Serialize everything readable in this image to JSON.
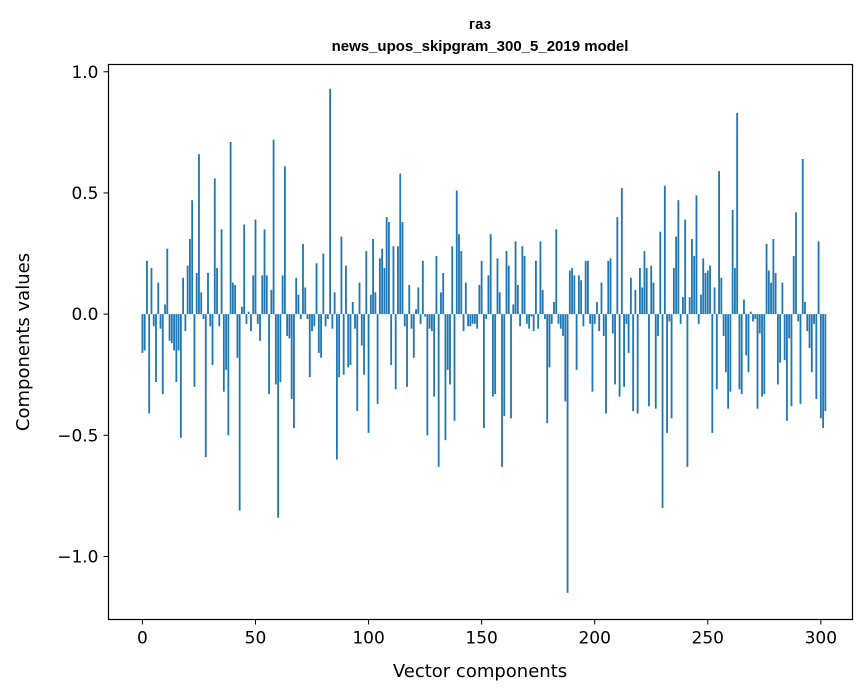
{
  "chart_data": {
    "type": "bar",
    "title": "газ",
    "subtitle": "news_upos_skipgram_300_5_2019 model",
    "xlabel": "Vector components",
    "ylabel": "Components values",
    "xlim": [
      -15,
      314
    ],
    "ylim": [
      -1.26,
      1.03
    ],
    "xticks": [
      0,
      50,
      100,
      150,
      200,
      250,
      300
    ],
    "xtick_labels": [
      "0",
      "50",
      "100",
      "150",
      "200",
      "250",
      "300"
    ],
    "yticks": [
      1.0,
      0.5,
      0.0,
      -0.5,
      -1.0
    ],
    "ytick_labels": [
      "1.0",
      "0.5",
      "0.0",
      "−0.5",
      "−1.0"
    ],
    "bar_color": "#1f77b4",
    "values": [
      -0.16,
      -0.15,
      0.22,
      -0.41,
      0.19,
      -0.05,
      -0.28,
      0.13,
      -0.06,
      -0.33,
      0.04,
      0.27,
      -0.11,
      -0.12,
      -0.15,
      -0.28,
      -0.15,
      -0.51,
      0.15,
      -0.07,
      0.2,
      0.31,
      0.47,
      -0.3,
      0.17,
      0.66,
      0.09,
      -0.02,
      -0.59,
      0.17,
      -0.05,
      -0.21,
      0.56,
      0.19,
      -0.05,
      0.35,
      -0.32,
      -0.23,
      -0.5,
      0.71,
      0.13,
      0.12,
      -0.18,
      -0.81,
      0.03,
      0.37,
      -0.04,
      0.01,
      -0.07,
      0.16,
      0.39,
      -0.04,
      -0.11,
      0.16,
      0.35,
      0.16,
      -0.33,
      0.1,
      0.72,
      -0.29,
      -0.84,
      -0.28,
      0.16,
      0.61,
      -0.09,
      -0.1,
      -0.35,
      -0.47,
      0.15,
      0.08,
      -0.02,
      0.29,
      0.11,
      -0.02,
      -0.26,
      -0.07,
      -0.05,
      0.21,
      -0.16,
      -0.18,
      0.25,
      -0.05,
      -0.02,
      0.93,
      -0.06,
      0.09,
      -0.6,
      -0.26,
      0.32,
      -0.25,
      0.2,
      -0.22,
      -0.21,
      0.05,
      -0.06,
      -0.4,
      0.13,
      -0.13,
      -0.25,
      0.26,
      -0.49,
      0.08,
      0.31,
      0.09,
      -0.37,
      0.23,
      0.27,
      0.19,
      0.4,
      0.38,
      -0.21,
      0.28,
      -0.31,
      0.28,
      0.58,
      0.38,
      -0.05,
      -0.3,
      0.12,
      -0.06,
      -0.18,
      0.02,
      0.11,
      -0.04,
      0.22,
      -0.01,
      -0.5,
      -0.06,
      -0.07,
      -0.34,
      0.24,
      -0.63,
      0.09,
      0.17,
      -0.52,
      -0.23,
      -0.29,
      0.28,
      -0.44,
      0.51,
      0.33,
      0.26,
      -0.07,
      0.13,
      -0.05,
      -0.05,
      -0.04,
      -0.04,
      -0.06,
      0.12,
      0.22,
      -0.47,
      -0.02,
      0.16,
      0.33,
      -0.34,
      -0.33,
      0.23,
      0.09,
      -0.63,
      -0.42,
      0.26,
      0.2,
      -0.43,
      0.04,
      0.3,
      0.12,
      -0.05,
      0.28,
      0.24,
      -0.04,
      -0.06,
      -0.01,
      -0.07,
      0.22,
      -0.06,
      0.3,
      0.1,
      -0.02,
      -0.45,
      -0.22,
      -0.04,
      0.05,
      0.35,
      -0.04,
      -0.06,
      -0.09,
      -0.36,
      -1.15,
      0.18,
      0.19,
      0.16,
      -0.23,
      0.16,
      0.14,
      -0.05,
      0.22,
      0.22,
      -0.04,
      -0.32,
      -0.04,
      0.05,
      -0.07,
      0.13,
      -0.09,
      -0.41,
      0.22,
      0.23,
      -0.08,
      -0.29,
      0.4,
      -0.34,
      0.52,
      -0.3,
      -0.04,
      -0.16,
      0.15,
      -0.4,
      0.1,
      -0.41,
      0.19,
      0.11,
      0.26,
      0.19,
      -0.38,
      0.2,
      0.13,
      -0.39,
      -0.09,
      0.34,
      -0.8,
      0.53,
      -0.49,
      -0.03,
      -0.43,
      0.19,
      0.32,
      0.47,
      -0.04,
      0.07,
      0.39,
      -0.63,
      0.07,
      0.31,
      0.24,
      0.49,
      -0.04,
      0.08,
      0.23,
      0.17,
      0.18,
      0.2,
      -0.49,
      0.11,
      -0.31,
      0.59,
      0.15,
      -0.09,
      -0.24,
      -0.39,
      -0.32,
      0.43,
      0.19,
      0.83,
      -0.31,
      -0.33,
      0.06,
      -0.17,
      -0.24,
      0.01,
      -0.03,
      -0.02,
      -0.39,
      -0.08,
      -0.34,
      -0.33,
      0.29,
      0.18,
      0.13,
      0.31,
      0.17,
      -0.29,
      -0.2,
      0.13,
      -0.19,
      -0.44,
      -0.1,
      -0.38,
      0.24,
      0.42,
      -0.03,
      -0.37,
      0.64,
      0.05,
      -0.07,
      -0.14,
      -0.24,
      -0.04,
      -0.35,
      0.3,
      -0.43,
      -0.47,
      -0.4
    ]
  }
}
